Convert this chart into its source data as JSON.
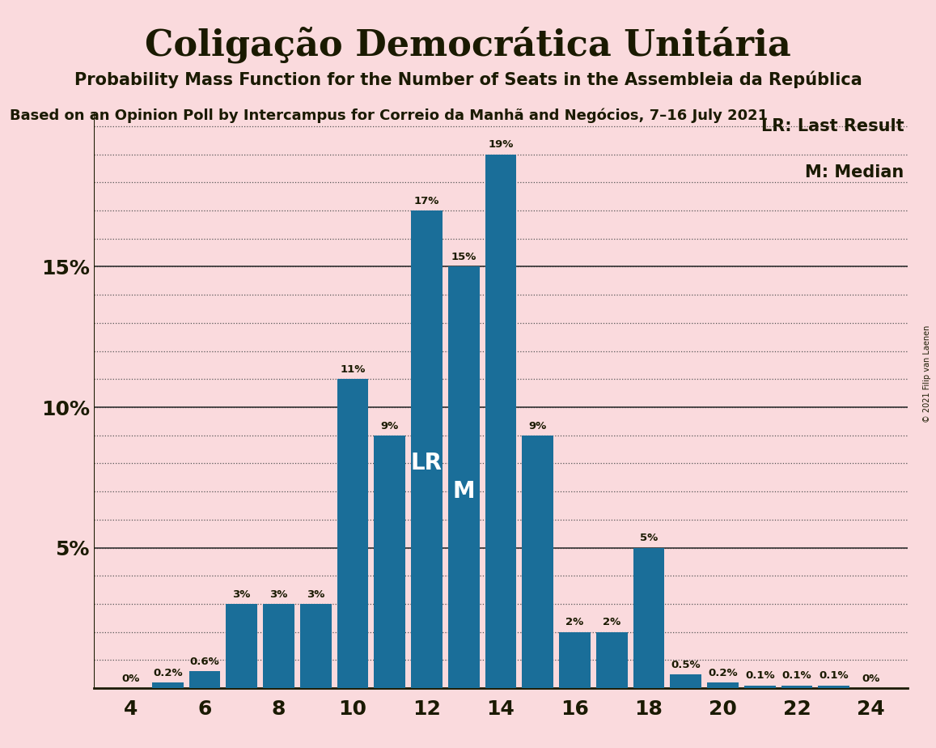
{
  "title": "Coligação Democrática Unitária",
  "subtitle": "Probability Mass Function for the Number of Seats in the Assembleia da República",
  "source": "Based on an Opinion Poll by Intercampus for Correio da Manhã and Negócios, 7–16 July 2021",
  "copyright": "© 2021 Filip van Laenen",
  "seats": [
    4,
    5,
    6,
    7,
    8,
    9,
    10,
    11,
    12,
    13,
    14,
    15,
    16,
    17,
    18,
    19,
    20,
    21,
    22,
    23,
    24
  ],
  "probabilities": [
    0.0,
    0.2,
    0.6,
    3.0,
    3.0,
    3.0,
    11.0,
    9.0,
    17.0,
    15.0,
    19.0,
    9.0,
    2.0,
    2.0,
    5.0,
    0.5,
    0.2,
    0.1,
    0.1,
    0.1,
    0.0
  ],
  "bar_color": "#1a6e99",
  "background_color": "#fadadd",
  "text_color": "#1a1a00",
  "lr_seat": 12,
  "median_seat": 13,
  "lr_label": "LR",
  "median_label": "M",
  "legend_lr": "LR: Last Result",
  "legend_m": "M: Median",
  "ytick_positions": [
    5,
    10,
    15
  ],
  "ytick_labels": [
    "5%",
    "10%",
    "15%"
  ],
  "ylim": [
    0,
    20.5
  ],
  "xlim": [
    3.0,
    25.0
  ],
  "xlabel_ticks": [
    4,
    6,
    8,
    10,
    12,
    14,
    16,
    18,
    20,
    22,
    24
  ],
  "grid_minor_step": 1,
  "bar_width": 0.85
}
